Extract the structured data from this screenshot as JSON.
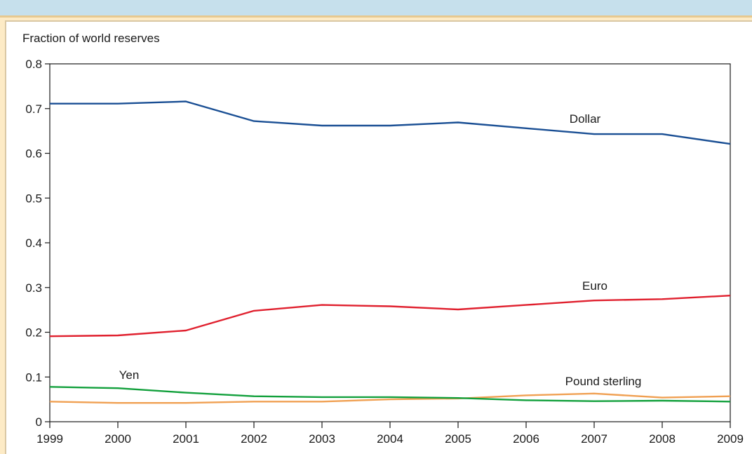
{
  "chart_data": {
    "type": "line",
    "ylabel": "Fraction of world reserves",
    "xlabel": "",
    "x": [
      1999,
      2000,
      2001,
      2002,
      2003,
      2004,
      2005,
      2006,
      2007,
      2008,
      2009
    ],
    "ylim": [
      0,
      0.8
    ],
    "yticks": [
      0,
      0.1,
      0.2,
      0.3,
      0.4,
      0.5,
      0.6,
      0.7,
      0.8
    ],
    "ytick_labels": [
      "0",
      "0.1",
      "0.2",
      "0.3",
      "0.4",
      "0.5",
      "0.6",
      "0.7",
      "0.8"
    ],
    "xtick_labels": [
      "1999",
      "2000",
      "2001",
      "2002",
      "2003",
      "2004",
      "2005",
      "2006",
      "2007",
      "2008",
      "2009"
    ],
    "grid": false,
    "legend": "inline labels",
    "series": [
      {
        "name": "Dollar",
        "color": "#1a4f94",
        "values": [
          0.711,
          0.711,
          0.716,
          0.672,
          0.662,
          0.662,
          0.669,
          0.656,
          0.643,
          0.643,
          0.621
        ]
      },
      {
        "name": "Euro",
        "color": "#e0202e",
        "values": [
          0.191,
          0.193,
          0.204,
          0.248,
          0.261,
          0.258,
          0.251,
          0.261,
          0.271,
          0.274,
          0.282
        ]
      },
      {
        "name": "Yen",
        "color": "#12a03c",
        "values": [
          0.078,
          0.075,
          0.065,
          0.057,
          0.055,
          0.055,
          0.053,
          0.048,
          0.046,
          0.047,
          0.045
        ]
      },
      {
        "name": "Pound sterling",
        "color": "#f0a052",
        "values": [
          0.045,
          0.042,
          0.042,
          0.045,
          0.045,
          0.05,
          0.052,
          0.059,
          0.063,
          0.054,
          0.057
        ]
      }
    ]
  }
}
